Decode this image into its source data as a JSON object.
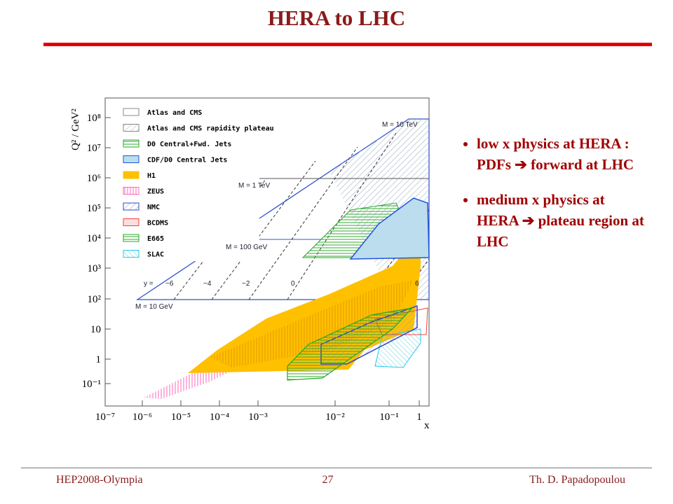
{
  "header": {
    "title": "HERA to LHC"
  },
  "figure": {
    "y_axis_label": "Q² / GeV²",
    "x_axis_label": "x",
    "y_tick_labels": [
      "10⁸",
      "10⁷",
      "10⁶",
      "10⁵",
      "10⁴",
      "10³",
      "10²",
      "10",
      "1",
      "10⁻¹"
    ],
    "x_tick_labels": [
      "10⁻⁷",
      "10⁻⁶",
      "10⁻⁵",
      "10⁻⁴",
      "10⁻³",
      "10⁻²",
      "10⁻¹",
      "1"
    ],
    "legend": [
      "Atlas and CMS",
      "Atlas and CMS rapidity plateau",
      "D0 Central+Fwd. Jets",
      "CDF/D0 Central Jets",
      "H1",
      "ZEUS",
      "NMC",
      "BCDMS",
      "E665",
      "SLAC"
    ],
    "mass_labels": [
      "M = 10 TeV",
      "M = 1 TeV",
      "M = 100 GeV",
      "M = 10 GeV"
    ],
    "rapidity_labels": [
      "y =",
      "−6",
      "−4",
      "−2",
      "0",
      "6"
    ]
  },
  "bullets": [
    "low x physics at HERA : PDFs ➔ forward at LHC",
    "medium x physics at HERA ➔ plateau region at LHC"
  ],
  "footer": {
    "left": "HEP2008-Olympia",
    "center": "27",
    "right": "Th. D. Papadopoulou"
  }
}
